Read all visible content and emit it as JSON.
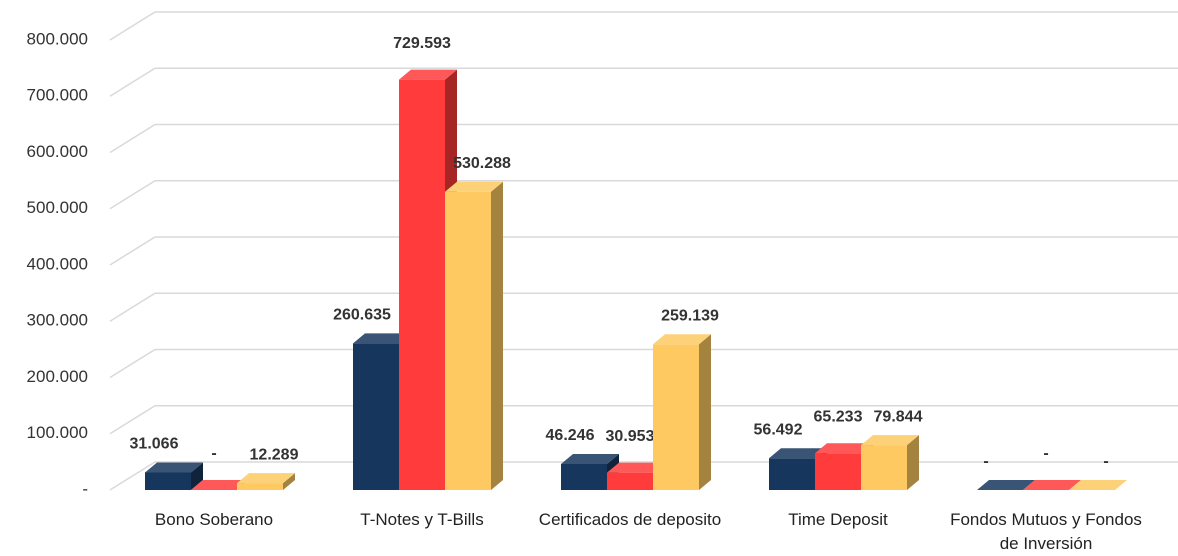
{
  "chart_data": {
    "type": "bar3d",
    "categories": [
      "Bono Soberano",
      "T-Notes y T-Bills",
      "Certificados de deposito",
      "Time Deposit",
      "Fondos Mutuos y Fondos de Inversión"
    ],
    "series": [
      {
        "color": "#17365d",
        "values": [
          31066,
          260635,
          46246,
          56492,
          0
        ],
        "value_labels": [
          "31.066",
          "260.635",
          "46.246",
          "56.492",
          "-"
        ]
      },
      {
        "color": "#ff3b3b",
        "values": [
          0,
          729593,
          30953,
          65233,
          0
        ],
        "value_labels": [
          "-",
          "729.593",
          "30.953",
          "65.233",
          "-"
        ]
      },
      {
        "color": "#fdc960",
        "values": [
          12289,
          530288,
          259139,
          79844,
          0
        ],
        "value_labels": [
          "12.289",
          "530.288",
          "259.139",
          "79.844",
          "-"
        ]
      }
    ],
    "ylim": [
      0,
      800000
    ],
    "yticks": [
      {
        "value": 0,
        "label": "-"
      },
      {
        "value": 100000,
        "label": "100.000"
      },
      {
        "value": 200000,
        "label": "200.000"
      },
      {
        "value": 300000,
        "label": "300.000"
      },
      {
        "value": 400000,
        "label": "400.000"
      },
      {
        "value": 500000,
        "label": "500.000"
      },
      {
        "value": 600000,
        "label": "600.000"
      },
      {
        "value": 700000,
        "label": "700.000"
      },
      {
        "value": 800000,
        "label": "800.000"
      }
    ],
    "grid": true
  }
}
